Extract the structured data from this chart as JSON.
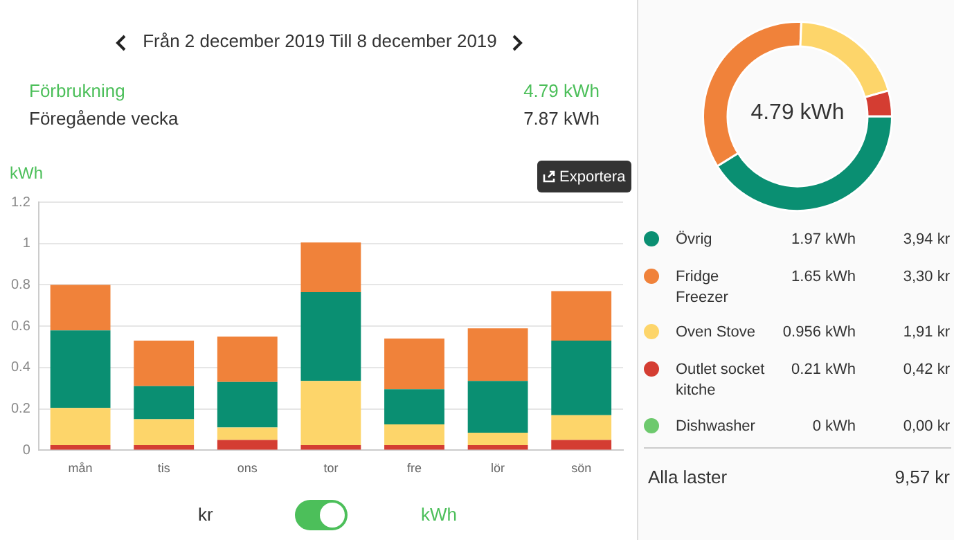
{
  "chart_data": [
    {
      "type": "bar",
      "title": "Från 2 december 2019 Till 8 december 2019",
      "ylabel": "kWh",
      "categories": [
        "mån",
        "tis",
        "ons",
        "tor",
        "fre",
        "lör",
        "sön"
      ],
      "stacked": true,
      "series": [
        {
          "color": "#d43d32",
          "values": [
            0.025,
            0.025,
            0.05,
            0.025,
            0.025,
            0.025,
            0.05
          ]
        },
        {
          "color": "#fdd56a",
          "values": [
            0.18,
            0.125,
            0.06,
            0.31,
            0.1,
            0.06,
            0.12
          ]
        },
        {
          "color": "#0a8f72",
          "values": [
            0.375,
            0.16,
            0.22,
            0.43,
            0.17,
            0.25,
            0.36
          ]
        },
        {
          "color": "#f0823a",
          "values": [
            0.22,
            0.22,
            0.22,
            0.24,
            0.245,
            0.255,
            0.24
          ]
        }
      ],
      "ylim": [
        0,
        1.2
      ],
      "yticks": [
        0,
        0.2,
        0.4,
        0.6,
        0.8,
        1,
        1.2
      ],
      "grid": "y",
      "annotations": [
        "Förbrukning",
        "4.79 kWh",
        "Föregående vecka",
        "7.87 kWh",
        "Exportera",
        "kr",
        "kWh"
      ]
    },
    {
      "type": "donut",
      "categories": [
        "Övrig",
        "Fridge Freezer",
        "Oven Stove",
        "Outlet socket kitche",
        "Dishwasher"
      ],
      "values": [
        1.97,
        1.65,
        0.956,
        0.21,
        0
      ],
      "colors": [
        "#0a8f72",
        "#f0823a",
        "#fdd56a",
        "#d43d32",
        "#6dc96d"
      ],
      "value_labels": [
        "1.97 kWh",
        "1.65 kWh",
        "0.956 kWh",
        "0.21 kWh",
        "0 kWh"
      ],
      "legend": "bottom",
      "annotations": [
        "4.79 kWh",
        "3,94 kr",
        "3,30 kr",
        "1,91 kr",
        "0,42 kr",
        "0,00 kr",
        "Alla laster",
        "9,57 kr"
      ]
    }
  ]
}
